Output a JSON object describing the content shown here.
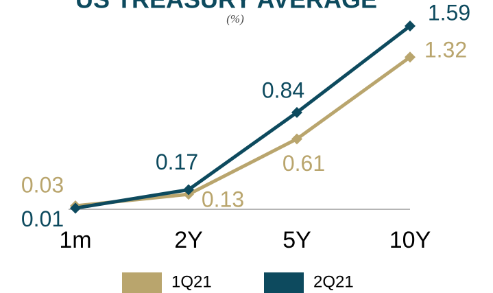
{
  "chart_data": {
    "type": "line",
    "title": "US TREASURY AVERAGE",
    "subtitle": "(%)",
    "categories": [
      "1m",
      "2Y",
      "5Y",
      "10Y"
    ],
    "series": [
      {
        "name": "1Q21",
        "color": "#b9a56d",
        "values": [
          0.03,
          0.13,
          0.61,
          1.32
        ]
      },
      {
        "name": "2Q21",
        "color": "#0d4a5e",
        "values": [
          0.01,
          0.17,
          0.84,
          1.59
        ]
      }
    ]
  }
}
